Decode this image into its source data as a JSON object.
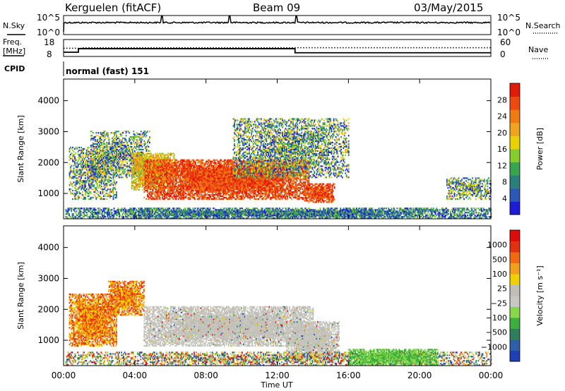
{
  "header": {
    "station": "Kerguelen (fitACF)",
    "beam": "Beam 09",
    "date": "03/May/2015"
  },
  "top_panel": {
    "nsky_label": "N.Sky",
    "nsky_ticks": [
      "10^5",
      "10^0"
    ],
    "nsearch_label": "N.Search",
    "nsearch_ticks": [
      "10^5",
      "10^0"
    ],
    "freq_label_1": "Freq.",
    "freq_label_2": "[MHz]",
    "freq_ticks": [
      "18",
      "8"
    ],
    "nave_label": "Nave",
    "nave_ticks": [
      "60",
      "0"
    ],
    "cpid_label": "CPID",
    "cpid_value": "normal (fast) 151",
    "freq_series": {
      "name": "Freq.",
      "segments": [
        {
          "t_start": "00:00",
          "t_end": "00:50",
          "value_mhz": 10.5
        },
        {
          "t_start": "00:50",
          "t_end": "13:00",
          "value_mhz": 12.6
        },
        {
          "t_start": "13:00",
          "t_end": "24:00",
          "value_mhz": 10.2
        }
      ]
    },
    "nave_series": {
      "name": "Nave",
      "segments": [
        {
          "t_start": "00:00",
          "t_end": "01:00",
          "value": 29
        },
        {
          "t_start": "01:00",
          "t_end": "24:00",
          "value": 31
        }
      ]
    }
  },
  "chart_data": [
    {
      "type": "heatmap",
      "name": "Power",
      "xlabel": "",
      "ylabel": "Slant Range [km]",
      "x_ticks": [
        "00:00",
        "04:00",
        "08:00",
        "12:00",
        "16:00",
        "20:00",
        "00:00"
      ],
      "y_ticks": [
        "1000",
        "2000",
        "3000",
        "4000"
      ],
      "ylim_km": [
        180,
        4700
      ],
      "colorbar": {
        "label": "Power [dB]",
        "ticks": [
          "28",
          "24",
          "20",
          "16",
          "12",
          "8",
          "4"
        ],
        "range": [
          0,
          30
        ],
        "colors": [
          "#1b1bd9",
          "#2c59b8",
          "#2d7f7a",
          "#3aa34f",
          "#86cc2e",
          "#e8d200",
          "#f0a31c",
          "#f07a14",
          "#ee4a0f",
          "#e11a0a"
        ]
      },
      "regions": [
        {
          "t_start": 0.3,
          "t_end": 3.0,
          "r_min": 800,
          "r_max": 2500,
          "level": "mixed"
        },
        {
          "t_start": 1.5,
          "t_end": 4.8,
          "r_min": 1500,
          "r_max": 3000,
          "level": "mixed"
        },
        {
          "t_start": 3.8,
          "t_end": 6.2,
          "r_min": 1100,
          "r_max": 2300,
          "level": "high"
        },
        {
          "t_start": 4.5,
          "t_end": 13.8,
          "r_min": 800,
          "r_max": 2100,
          "level": "max"
        },
        {
          "t_start": 13.5,
          "t_end": 15.2,
          "r_min": 700,
          "r_max": 1300,
          "level": "max"
        },
        {
          "t_start": 9.5,
          "t_end": 16.0,
          "r_min": 1500,
          "r_max": 3400,
          "level": "mixed"
        },
        {
          "t_start": 0.1,
          "t_end": 24.0,
          "r_min": 180,
          "r_max": 500,
          "level": "low"
        },
        {
          "t_start": 21.5,
          "t_end": 24.0,
          "r_min": 800,
          "r_max": 1500,
          "level": "mixed"
        }
      ]
    },
    {
      "type": "heatmap",
      "name": "Velocity",
      "xlabel": "Time UT",
      "ylabel": "Slant Range [km]",
      "x_ticks": [
        "00:00",
        "04:00",
        "08:00",
        "12:00",
        "16:00",
        "20:00",
        "00:00"
      ],
      "y_ticks": [
        "1000",
        "2000",
        "3000",
        "4000"
      ],
      "ylim_km": [
        180,
        4700
      ],
      "colorbar": {
        "label": "Velocity [m s⁻¹]",
        "ticks": [
          "1000",
          "500",
          "100",
          "25",
          "−25",
          "−100",
          "−500",
          "−1000"
        ],
        "colors": [
          "#1f3fb6",
          "#2f5fa6",
          "#2f7f5e",
          "#3cae3c",
          "#86d84a",
          "#c8c8c0",
          "#bebeb6",
          "#f0d000",
          "#f0a01a",
          "#ef6a12",
          "#e23010",
          "#e00a0a"
        ]
      },
      "regions": [
        {
          "t_start": 0.3,
          "t_end": 3.0,
          "r_min": 800,
          "r_max": 2500,
          "level": "neg"
        },
        {
          "t_start": 2.5,
          "t_end": 4.5,
          "r_min": 1800,
          "r_max": 2900,
          "level": "neg"
        },
        {
          "t_start": 4.5,
          "t_end": 14.0,
          "r_min": 800,
          "r_max": 2100,
          "level": "grey"
        },
        {
          "t_start": 12.5,
          "t_end": 15.5,
          "r_min": 400,
          "r_max": 1600,
          "level": "grey"
        },
        {
          "t_start": 0.1,
          "t_end": 24.0,
          "r_min": 180,
          "r_max": 600,
          "level": "mixed"
        },
        {
          "t_start": 16.0,
          "t_end": 21.0,
          "r_min": 180,
          "r_max": 700,
          "level": "pos"
        }
      ]
    }
  ]
}
